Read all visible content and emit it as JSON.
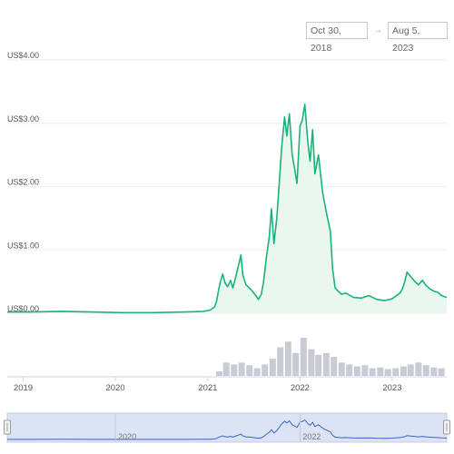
{
  "date_range": {
    "start": "Oct 30, 2018",
    "separator": "→",
    "end": "Aug 5, 2023"
  },
  "colors": {
    "price_line": "#18b47a",
    "price_fill": "#e9f7ee",
    "volume": "#c9cbd4",
    "navigator_bg": "#dbe3f4",
    "navigator_line": "#3b63c4",
    "grid": "#eeeeee"
  },
  "navigator": {
    "tick_labels": [
      "2020",
      "2022"
    ]
  },
  "chart_data": {
    "type": "line",
    "title": "",
    "y_tick_labels": [
      "US$4.00",
      "US$3.00",
      "US$2.00",
      "US$1.00",
      "US$0.00"
    ],
    "y_ticks": [
      4,
      3,
      2,
      1,
      0
    ],
    "ylim": [
      0,
      4
    ],
    "x_tick_labels": [
      "2019",
      "2020",
      "2021",
      "2022",
      "2023"
    ],
    "x_ticks": [
      "2019-01-01",
      "2020-01-01",
      "2021-01-01",
      "2022-01-01",
      "2023-01-01"
    ],
    "x_range": [
      "2018-10-30",
      "2023-08-05"
    ],
    "grid": true,
    "series": [
      {
        "type": "line",
        "x": [
          "2018-10-30",
          "2019-02-01",
          "2019-06-01",
          "2019-10-01",
          "2020-02-01",
          "2020-06-01",
          "2020-10-01",
          "2020-12-15",
          "2021-01-10",
          "2021-01-28",
          "2021-02-05",
          "2021-02-12",
          "2021-02-20",
          "2021-03-01",
          "2021-03-10",
          "2021-03-20",
          "2021-04-01",
          "2021-04-10",
          "2021-04-20",
          "2021-05-05",
          "2021-05-12",
          "2021-05-20",
          "2021-06-01",
          "2021-06-20",
          "2021-07-10",
          "2021-07-20",
          "2021-08-01",
          "2021-08-10",
          "2021-08-20",
          "2021-09-01",
          "2021-09-10",
          "2021-09-20",
          "2021-10-01",
          "2021-10-10",
          "2021-10-20",
          "2021-11-01",
          "2021-11-10",
          "2021-11-20",
          "2021-12-01",
          "2021-12-10",
          "2021-12-20",
          "2022-01-01",
          "2022-01-10",
          "2022-01-20",
          "2022-02-01",
          "2022-02-10",
          "2022-02-20",
          "2022-03-01",
          "2022-03-15",
          "2022-04-01",
          "2022-04-15",
          "2022-05-01",
          "2022-05-10",
          "2022-05-20",
          "2022-06-01",
          "2022-06-15",
          "2022-07-01",
          "2022-08-01",
          "2022-09-01",
          "2022-10-01",
          "2022-11-01",
          "2022-12-01",
          "2023-01-01",
          "2023-01-15",
          "2023-02-01",
          "2023-02-10",
          "2023-02-20",
          "2023-03-01",
          "2023-03-15",
          "2023-04-01",
          "2023-04-15",
          "2023-05-01",
          "2023-05-15",
          "2023-06-01",
          "2023-06-15",
          "2023-07-01",
          "2023-07-15",
          "2023-08-05"
        ],
        "y": [
          0.02,
          0.02,
          0.03,
          0.02,
          0.01,
          0.01,
          0.02,
          0.03,
          0.05,
          0.1,
          0.2,
          0.35,
          0.5,
          0.62,
          0.48,
          0.42,
          0.52,
          0.4,
          0.55,
          0.8,
          0.92,
          0.6,
          0.45,
          0.38,
          0.28,
          0.22,
          0.3,
          0.5,
          0.85,
          1.2,
          1.65,
          1.1,
          1.5,
          2.0,
          2.6,
          3.1,
          2.8,
          3.15,
          2.5,
          2.3,
          2.05,
          2.95,
          3.05,
          3.3,
          2.7,
          2.4,
          2.9,
          2.2,
          2.5,
          1.9,
          1.6,
          1.3,
          0.7,
          0.4,
          0.35,
          0.3,
          0.32,
          0.25,
          0.24,
          0.28,
          0.22,
          0.2,
          0.23,
          0.27,
          0.32,
          0.38,
          0.5,
          0.65,
          0.58,
          0.5,
          0.45,
          0.52,
          0.44,
          0.38,
          0.35,
          0.33,
          0.28,
          0.25
        ]
      },
      {
        "type": "bar",
        "x": [
          "2021-02-15",
          "2021-03-15",
          "2021-04-15",
          "2021-05-15",
          "2021-06-15",
          "2021-07-15",
          "2021-08-15",
          "2021-09-15",
          "2021-10-15",
          "2021-11-15",
          "2021-12-15",
          "2022-01-15",
          "2022-02-15",
          "2022-03-15",
          "2022-04-15",
          "2022-05-15",
          "2022-06-15",
          "2022-07-15",
          "2022-08-15",
          "2022-09-15",
          "2022-10-15",
          "2022-11-15",
          "2022-12-15",
          "2023-01-15",
          "2023-02-15",
          "2023-03-15",
          "2023-04-15",
          "2023-05-15",
          "2023-06-15",
          "2023-07-15"
        ],
        "y": [
          0.12,
          0.35,
          0.3,
          0.35,
          0.28,
          0.2,
          0.3,
          0.45,
          0.75,
          0.9,
          0.6,
          1.0,
          0.7,
          0.55,
          0.6,
          0.5,
          0.35,
          0.3,
          0.25,
          0.28,
          0.2,
          0.22,
          0.18,
          0.2,
          0.25,
          0.3,
          0.35,
          0.28,
          0.22,
          0.2
        ]
      }
    ]
  }
}
